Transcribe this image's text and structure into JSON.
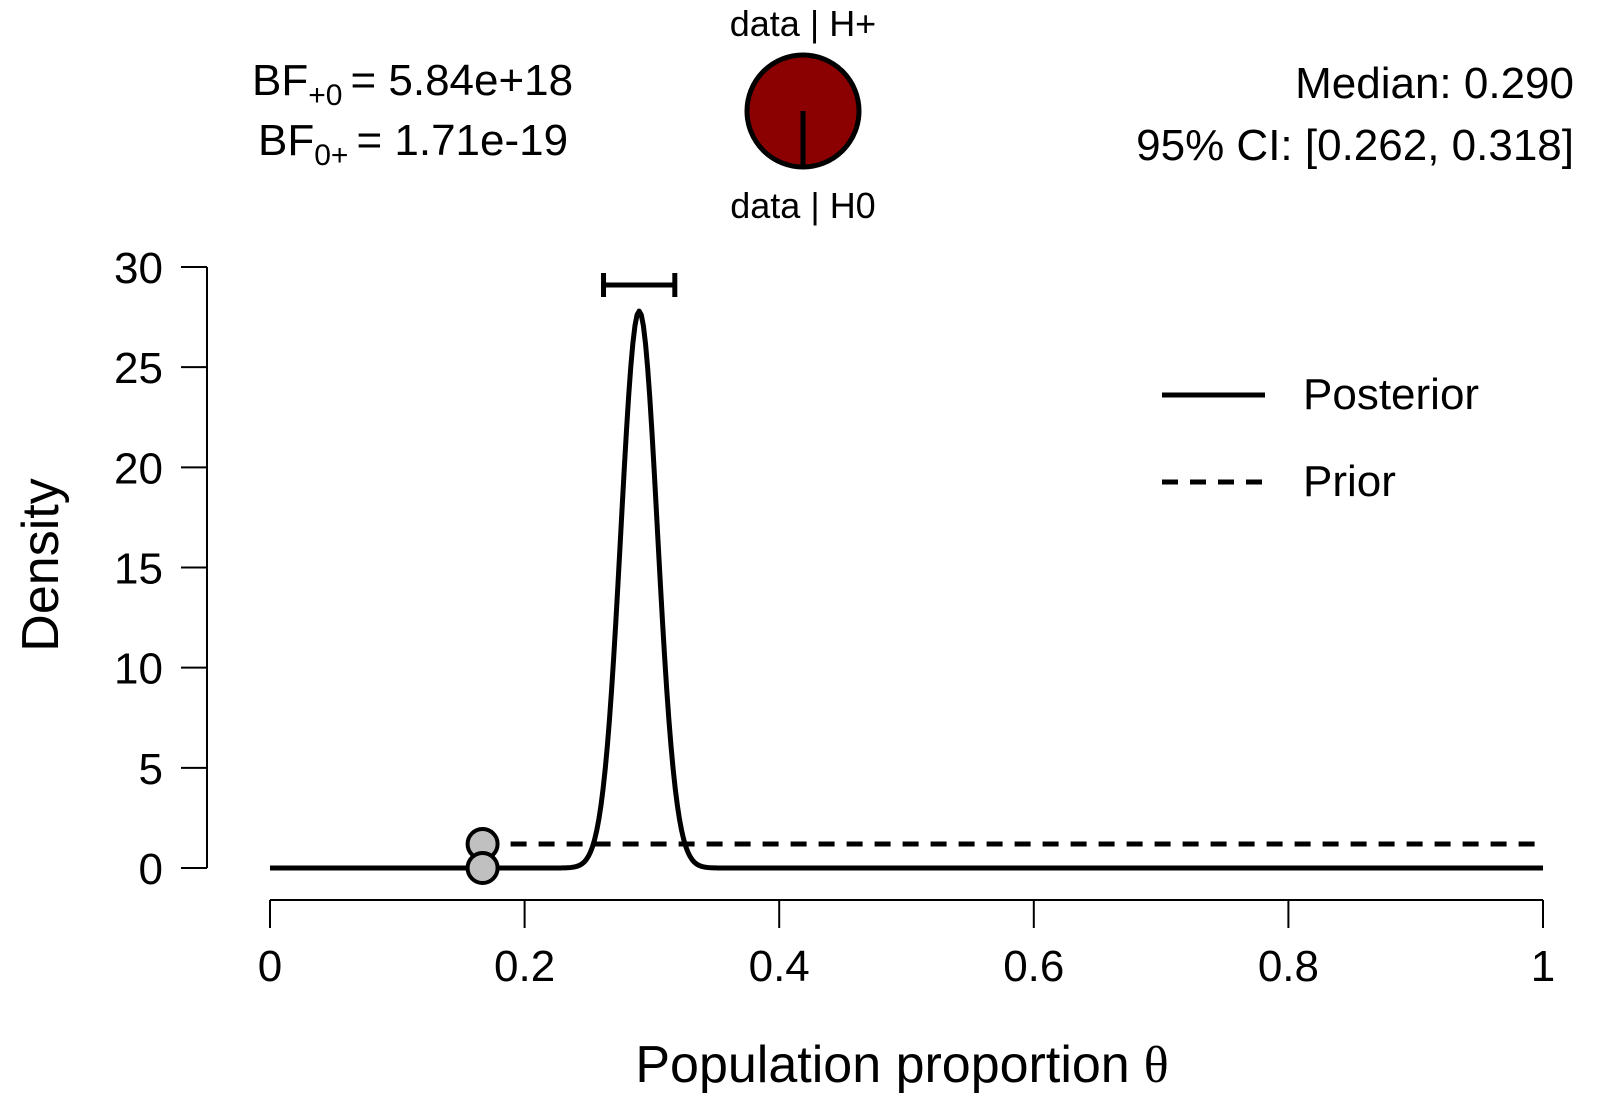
{
  "colors": {
    "pie_fill": "#8B0000",
    "point_fill": "#C0C0C0",
    "line": "#000000"
  },
  "header": {
    "bf_plus0_prefix": "BF",
    "bf_plus0_sub": "+0",
    "bf_plus0_value": "= 5.84e+18",
    "bf_0plus_prefix": "BF",
    "bf_0plus_sub": "0+",
    "bf_0plus_value": "= 1.71e-19",
    "pie_top_label": "data | H+",
    "pie_bottom_label": "data | H0",
    "median_text": "Median: 0.290",
    "ci_text": "95% CI: [0.262, 0.318]"
  },
  "chart_data": {
    "type": "line",
    "xlabel": "Population proportion",
    "xlabel_symbol": "θ",
    "ylabel": "Density",
    "xlim": [
      0,
      1
    ],
    "ylim": [
      0,
      30
    ],
    "x_ticks": [
      0,
      0.2,
      0.4,
      0.6,
      0.8,
      1
    ],
    "x_tick_labels": [
      "0",
      "0.2",
      "0.4",
      "0.6",
      "0.8",
      "1"
    ],
    "y_ticks": [
      0,
      5,
      10,
      15,
      20,
      25,
      30
    ],
    "y_tick_labels": [
      "0",
      "5",
      "10",
      "15",
      "20",
      "25",
      "30"
    ],
    "legend_position": "top-right",
    "pie_fraction_h0": 1.71e-19,
    "series": [
      {
        "name": "Posterior",
        "style": "solid",
        "distribution": "truncated normal",
        "mean": 0.29,
        "sd": 0.01435,
        "truncation_lower": 0.167,
        "peak_density": 27.8
      },
      {
        "name": "Prior",
        "style": "dashed",
        "distribution": "uniform",
        "lower": 0.167,
        "upper": 1,
        "density": 1.2
      }
    ],
    "credible_interval": {
      "level": 0.95,
      "lower": 0.262,
      "upper": 0.318,
      "median": 0.29
    },
    "test_value": 0.167,
    "points": [
      {
        "label": "prior at test value",
        "x": 0.167,
        "y": 1.2
      },
      {
        "label": "posterior at test value",
        "x": 0.167,
        "y": 0
      }
    ]
  }
}
